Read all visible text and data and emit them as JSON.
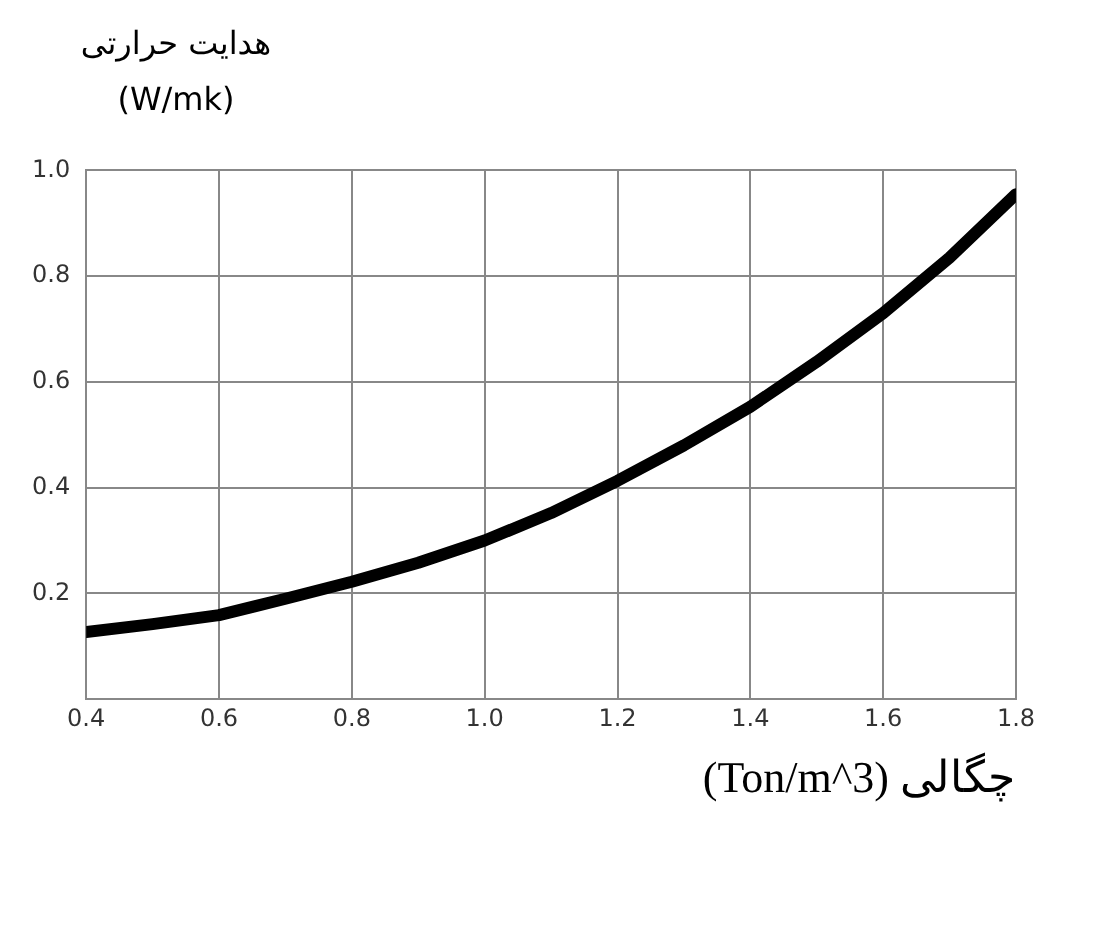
{
  "chart_data": {
    "type": "line",
    "xlabel": "چگالی (Ton/m^3)",
    "ylabel": "هدایت حرارتی\n(W/mk)",
    "x": [
      0.4,
      0.5,
      0.6,
      0.7,
      0.8,
      0.9,
      1.0,
      1.1,
      1.2,
      1.3,
      1.4,
      1.5,
      1.6,
      1.7,
      1.8
    ],
    "series": [
      {
        "color": "#000000",
        "values": [
          0.127,
          0.142,
          0.159,
          0.19,
          0.222,
          0.258,
          0.3,
          0.352,
          0.413,
          0.48,
          0.553,
          0.638,
          0.73,
          0.835,
          0.955
        ]
      }
    ],
    "xlim": [
      0.4,
      1.8
    ],
    "xticks": [
      0.4,
      0.6,
      0.8,
      {
        "value": 1,
        "label": "1.0"
      },
      1.2,
      1.4,
      1.6,
      1.8
    ],
    "ylim": [
      0,
      1.0
    ],
    "yticks": [
      {
        "value": 0,
        "label": null
      },
      0.2,
      0.4,
      0.6,
      0.8,
      {
        "value": 1,
        "label": "1.0"
      }
    ],
    "grid": true,
    "marker": "none",
    "line_style": "solid"
  }
}
